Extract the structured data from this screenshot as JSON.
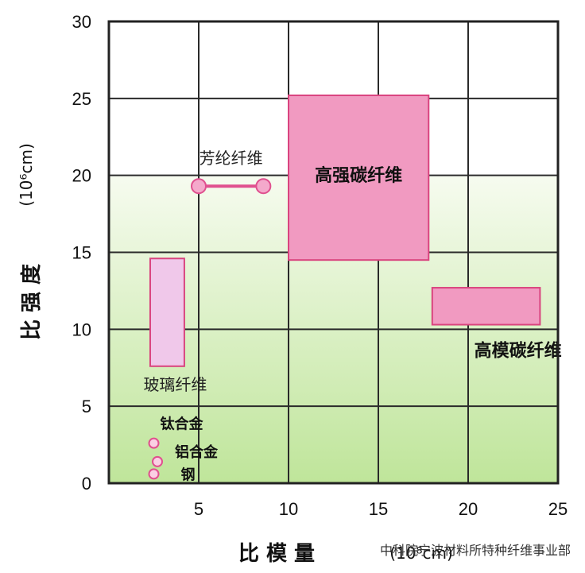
{
  "chart_data": {
    "type": "scatter",
    "xlabel": "比 模 量",
    "xunit": "(10⁸cm)",
    "ylabel": "比 强 度",
    "yunit": "(10⁶cm)",
    "xlim": [
      0,
      25
    ],
    "ylim": [
      0,
      30
    ],
    "xticks": [
      "5",
      "10",
      "15",
      "20",
      "25"
    ],
    "yticks": [
      "0",
      "5",
      "10",
      "15",
      "20",
      "25",
      "30"
    ],
    "grid": true,
    "regions": [
      {
        "name": "高强碳纤维",
        "x": [
          10,
          17.8
        ],
        "y": [
          14.5,
          25.2
        ],
        "color": "#f19ac1",
        "label_style": "bold"
      },
      {
        "name": "高模碳纤维",
        "x": [
          18,
          24
        ],
        "y": [
          10.3,
          12.7
        ],
        "color": "#f19ac1",
        "label_style": "bold"
      },
      {
        "name": "玻璃纤维",
        "x": [
          2.3,
          4.2
        ],
        "y": [
          7.6,
          14.6
        ],
        "color": "#f0c8ea",
        "label_style": "normal"
      }
    ],
    "segments": [
      {
        "name": "芳纶纤维",
        "x": [
          5,
          8.6
        ],
        "y": [
          19.3,
          19.3
        ],
        "color": "#e0508f"
      }
    ],
    "points": [
      {
        "name": "钛合金",
        "x": 2.5,
        "y": 2.6
      },
      {
        "name": "铝合金",
        "x": 2.7,
        "y": 1.4
      },
      {
        "name": "钢",
        "x": 2.5,
        "y": 0.6
      }
    ]
  },
  "watermark": "中科院宁波材料所特种纤维事业部"
}
